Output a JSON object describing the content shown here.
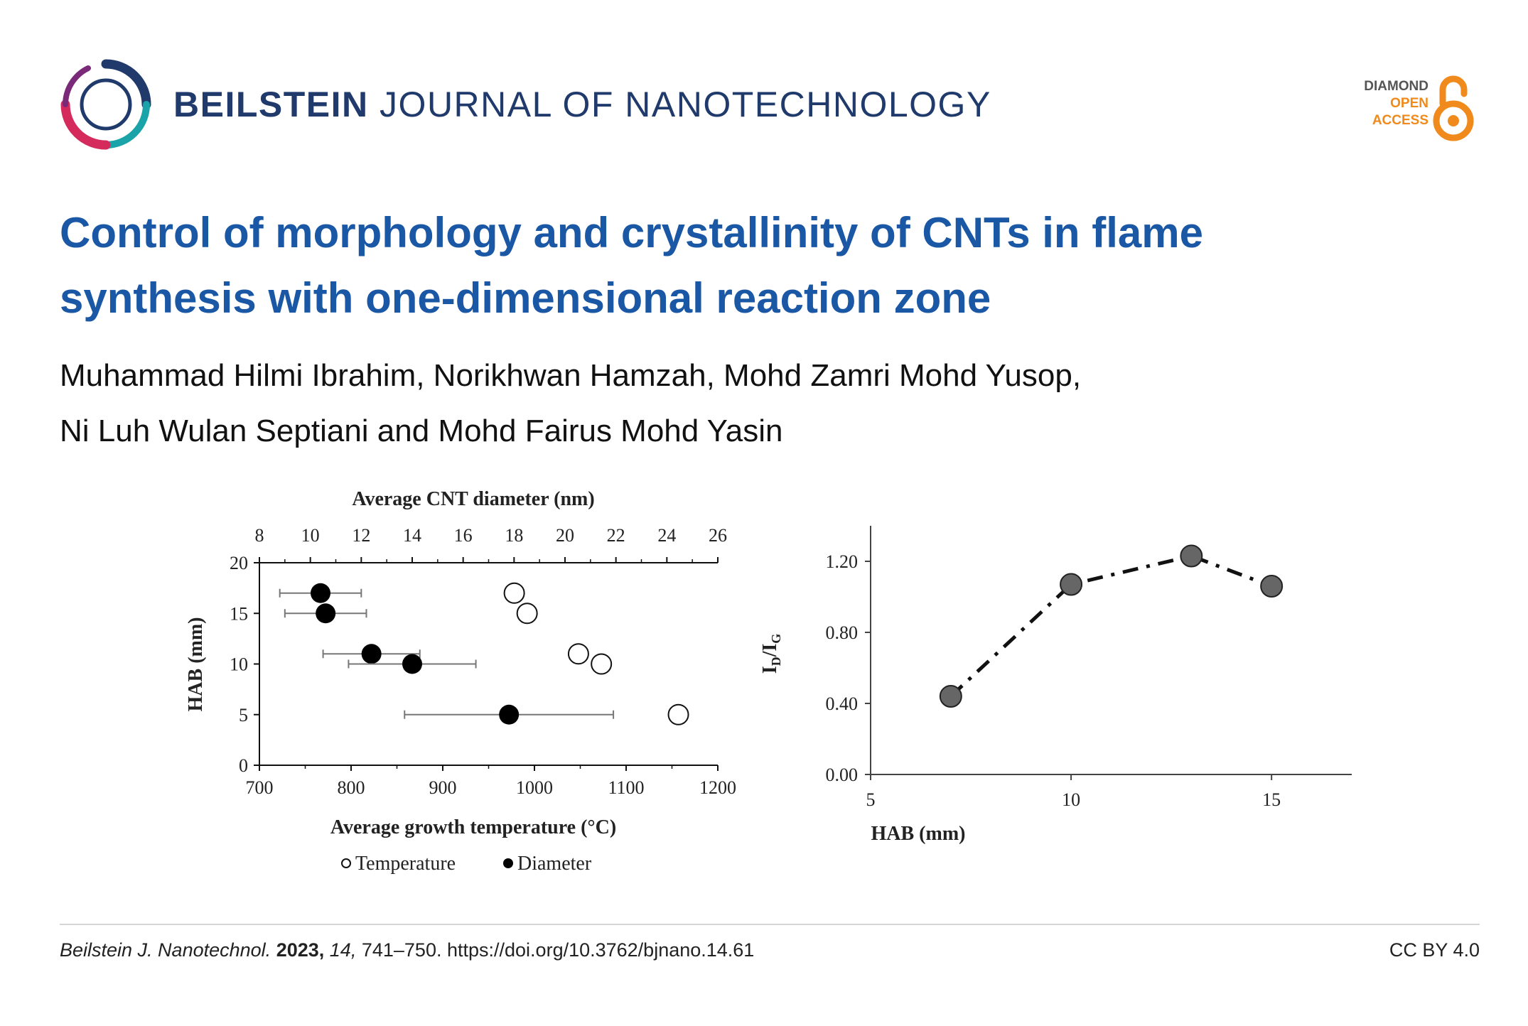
{
  "journal": {
    "name_bold": "BEILSTEIN",
    "name_rest": "JOURNAL OF NANOTECHNOLOGY",
    "logo_icon": "beilstein-ring-logo",
    "open_access": [
      "DIAMOND",
      "OPEN",
      "ACCESS"
    ],
    "oa_icon": "open-lock-icon",
    "colors": {
      "journal_text": "#1f3a6b",
      "title": "#1a58a6",
      "oa_orange": "#f08a1c"
    }
  },
  "article": {
    "title_lines": [
      "Control of morphology and crystallinity of CNTs in flame",
      "synthesis with one-dimensional reaction zone"
    ],
    "author_lines": [
      "Muhammad Hilmi Ibrahim, Norikhwan Hamzah, Mohd Zamri Mohd Yusop,",
      "Ni Luh Wulan Septiani and Mohd Fairus Mohd Yasin"
    ]
  },
  "chart_data": [
    {
      "type": "scatter",
      "title": "",
      "xlabel": "Average growth temperature (°C)",
      "x2label": "Average CNT diameter (nm)",
      "ylabel": "HAB (mm)",
      "xlim": [
        700,
        1200
      ],
      "x2lim": [
        8,
        26
      ],
      "ylim": [
        0,
        20
      ],
      "xticks": [
        700,
        800,
        900,
        1000,
        1100,
        1200
      ],
      "x2ticks": [
        8,
        10,
        12,
        14,
        16,
        18,
        20,
        22,
        24,
        26
      ],
      "yticks": [
        0,
        5,
        10,
        15,
        20
      ],
      "legend": [
        "Temperature",
        "Diameter"
      ],
      "legend_position": "bottom",
      "series": [
        {
          "name": "Temperature",
          "marker": "open-circle",
          "points": [
            {
              "x": 978,
              "y": 17
            },
            {
              "x": 992,
              "y": 15
            },
            {
              "x": 1048,
              "y": 11
            },
            {
              "x": 1073,
              "y": 10
            },
            {
              "x": 1157,
              "y": 5
            }
          ]
        },
        {
          "name": "Diameter",
          "marker": "filled-circle",
          "axis": "top",
          "points": [
            {
              "x": 10.4,
              "y": 17,
              "err": 1.6
            },
            {
              "x": 10.6,
              "y": 15,
              "err": 1.6
            },
            {
              "x": 12.4,
              "y": 11,
              "err": 1.9
            },
            {
              "x": 14.0,
              "y": 10,
              "err": 2.5
            },
            {
              "x": 17.8,
              "y": 5,
              "err": 4.1
            }
          ]
        }
      ]
    },
    {
      "type": "line",
      "title": "",
      "xlabel": "HAB (mm)",
      "ylabel": "ID/IG",
      "ylabel_main": "I",
      "ylabel_sub1": "D",
      "ylabel_sep": "/I",
      "ylabel_sub2": "G",
      "xlim": [
        5,
        17
      ],
      "ylim": [
        0,
        1.4
      ],
      "xticks": [
        5,
        10,
        15
      ],
      "xtick_labels": [
        "5",
        "10",
        "15"
      ],
      "yticks": [
        0.0,
        0.4,
        0.8,
        1.2
      ],
      "ytick_labels": [
        "0.00",
        "0.40",
        "0.80",
        "1.20"
      ],
      "line_style": "dash-dot",
      "series": [
        {
          "x": [
            7,
            10,
            13,
            15
          ],
          "y": [
            0.44,
            1.07,
            1.23,
            1.06
          ]
        }
      ]
    }
  ],
  "footer": {
    "journal_abbrev": "Beilstein J. Nanotechnol.",
    "year": "2023,",
    "volume": "14,",
    "pages": "741–750.",
    "doi": "https://doi.org/10.3762/bjnano.14.61",
    "license": "CC BY 4.0"
  }
}
